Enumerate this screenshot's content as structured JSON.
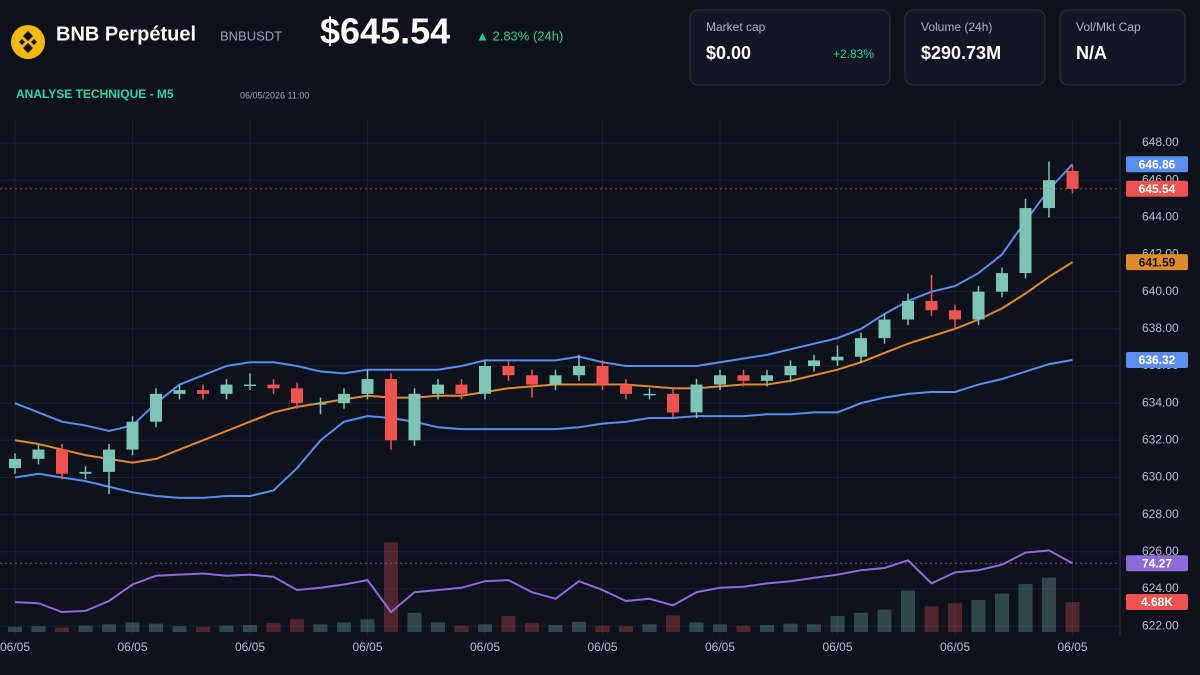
{
  "header": {
    "name": "BNB Perpétuel",
    "symbol": "BNBUSDT",
    "price": "$645.54",
    "change": "▲ 2.83% (24h)",
    "section": "ANALYSE TECHNIQUE - M5",
    "timestamp": "06/05/2026 11:00"
  },
  "cards": [
    {
      "label": "Market cap",
      "value": "$0.00",
      "change": "+2.83%"
    },
    {
      "label": "Volume (24h)",
      "value": "$290.73M"
    },
    {
      "label": "Vol/Mkt Cap",
      "value": "N/A"
    }
  ],
  "chart_data": {
    "type": "candlestick",
    "categories": [
      "06/05",
      null,
      null,
      null,
      null,
      "06/05",
      null,
      null,
      null,
      null,
      "06/05",
      null,
      null,
      null,
      null,
      "06/05",
      null,
      null,
      null,
      null,
      "06/05",
      null,
      null,
      null,
      null,
      "06/05",
      null,
      null,
      null,
      null,
      "06/05",
      null,
      null,
      null,
      null,
      "06/05",
      null,
      null,
      null,
      null,
      "06/05",
      null,
      null,
      null,
      null,
      "06/05"
    ],
    "open": [
      630.5,
      631,
      631.5,
      630.2,
      630.3,
      631.5,
      633,
      634.5,
      634.7,
      634.5,
      635,
      635,
      634.8,
      634,
      634,
      634.5,
      635.3,
      632,
      634.5,
      635,
      634.5,
      636,
      635.5,
      635,
      635.5,
      636,
      635,
      634.5,
      634.5,
      633.5,
      635,
      635.5,
      635.2,
      635.5,
      636,
      636.3,
      636.5,
      637.5,
      638.5,
      639.5,
      639,
      638.5,
      640,
      641,
      644.5,
      646.5
    ],
    "high": [
      631.3,
      631.8,
      631.8,
      630.6,
      631.8,
      633.3,
      634.8,
      635,
      635,
      635.3,
      635.6,
      635.3,
      635.1,
      634.3,
      634.8,
      635.8,
      635.6,
      634.8,
      635.3,
      635.3,
      636.3,
      636.3,
      635.8,
      635.8,
      636.6,
      636.3,
      635.3,
      634.8,
      634.8,
      635.3,
      635.8,
      635.8,
      635.8,
      636.3,
      636.6,
      637.1,
      637.8,
      638.8,
      639.9,
      640.9,
      639.3,
      640.3,
      641.3,
      645,
      647,
      646.8
    ],
    "low": [
      630.2,
      630.7,
      629.9,
      629.9,
      629.1,
      631.2,
      632.7,
      634.2,
      634.2,
      634.2,
      634.7,
      634.5,
      633.7,
      633.4,
      633.7,
      634.2,
      631.5,
      631.7,
      634.2,
      634.2,
      634.2,
      635.2,
      634.3,
      634.7,
      635.2,
      634.7,
      634.2,
      634.2,
      633.2,
      633.2,
      634.7,
      634.9,
      634.9,
      635.2,
      635.7,
      636,
      636.2,
      637.2,
      638.2,
      638.7,
      638,
      638.2,
      639.7,
      640.7,
      644,
      645.3
    ],
    "close": [
      631,
      631.5,
      630.2,
      630.3,
      631.5,
      633,
      634.5,
      634.7,
      634.5,
      635,
      635,
      634.8,
      634,
      634,
      634.5,
      635.3,
      632,
      634.5,
      635,
      634.5,
      636,
      635.5,
      635,
      635.5,
      636,
      635,
      634.5,
      634.5,
      633.5,
      635,
      635.5,
      635.2,
      635.5,
      636,
      636.3,
      636.5,
      637.5,
      638.5,
      639.5,
      639,
      638.5,
      640,
      641,
      644.5,
      646,
      645.54
    ],
    "up_color": "#7cc4b4",
    "down_color": "#ef5350",
    "lines": [
      {
        "color": "#5b8def",
        "values": [
          634,
          633.5,
          633,
          632.8,
          632.5,
          632.8,
          634,
          635,
          635.5,
          636,
          636.2,
          636.2,
          636,
          635.7,
          635.6,
          635.8,
          635.8,
          635.8,
          635.8,
          636,
          636.3,
          636.3,
          636.3,
          636.3,
          636.5,
          636.2,
          636,
          636,
          636,
          636,
          636.2,
          636.4,
          636.6,
          636.9,
          637.2,
          637.5,
          638,
          638.8,
          639.5,
          640,
          640.3,
          641,
          642,
          643.8,
          645.5,
          646.86
        ]
      },
      {
        "color": "#e08a2c",
        "values": [
          632,
          631.8,
          631.5,
          631.2,
          631,
          630.8,
          631,
          631.5,
          632,
          632.5,
          633,
          633.5,
          633.8,
          634,
          634.2,
          634.4,
          634.3,
          634.3,
          634.4,
          634.4,
          634.6,
          634.8,
          634.9,
          635,
          635,
          635,
          635,
          634.9,
          634.8,
          634.8,
          634.9,
          635,
          635,
          635.2,
          635.5,
          635.8,
          636.2,
          636.7,
          637.2,
          637.6,
          638,
          638.5,
          639.1,
          639.9,
          640.8,
          641.59
        ]
      },
      {
        "color": "#5b8def",
        "values": [
          630,
          630.2,
          630,
          629.8,
          629.5,
          629.2,
          629,
          628.9,
          628.9,
          629,
          629,
          629.3,
          630.5,
          632,
          633,
          633.3,
          633.2,
          633,
          632.7,
          632.6,
          632.6,
          632.6,
          632.6,
          632.6,
          632.7,
          632.9,
          633,
          633.2,
          633.2,
          633.3,
          633.3,
          633.3,
          633.4,
          633.4,
          633.5,
          633.5,
          634,
          634.3,
          634.5,
          634.6,
          634.6,
          635,
          635.3,
          635.7,
          636.1,
          636.32
        ]
      }
    ],
    "rsi": {
      "color": "#8e6bd8",
      "axis": "y2",
      "values": [
        39,
        38,
        30,
        31,
        40,
        55,
        63,
        64,
        65,
        63,
        64,
        62,
        50,
        52,
        55,
        59,
        30,
        48,
        50,
        52,
        58,
        59,
        48,
        42,
        58,
        50,
        40,
        42,
        36,
        48,
        52,
        53,
        56,
        58,
        61,
        64,
        68,
        70,
        77,
        56,
        66,
        68,
        73,
        84,
        86,
        74.27
      ]
    },
    "volume": {
      "axis": "y3",
      "values": [
        800,
        900,
        700,
        1000,
        1200,
        1500,
        1300,
        900,
        800,
        1000,
        1100,
        1400,
        2000,
        1200,
        1500,
        2000,
        14000,
        3000,
        1500,
        1000,
        1200,
        2500,
        1400,
        1100,
        1600,
        1000,
        900,
        1200,
        2600,
        1500,
        1200,
        1000,
        1100,
        1300,
        1200,
        2500,
        3000,
        3500,
        6500,
        4000,
        4500,
        5000,
        6000,
        7500,
        8500,
        4680
      ],
      "value_labels": [
        null,
        null,
        null,
        null,
        null,
        null,
        null,
        null,
        null,
        null,
        null,
        null,
        null,
        null,
        null,
        null,
        null,
        null,
        null,
        null,
        null,
        null,
        null,
        null,
        null,
        null,
        null,
        null,
        null,
        null,
        null,
        null,
        null,
        null,
        null,
        null,
        null,
        null,
        null,
        null,
        null,
        null,
        null,
        null,
        null,
        "4.68K"
      ]
    },
    "ylim": [
      621.52,
      649.24
    ],
    "yticks": [
      {
        "value": 622,
        "label": "622.00"
      },
      {
        "value": 624,
        "label": "624.00"
      },
      {
        "value": 626,
        "label": "626.00"
      },
      {
        "value": 628,
        "label": "628.00"
      },
      {
        "value": 630,
        "label": "630.00"
      },
      {
        "value": 632,
        "label": "632.00"
      },
      {
        "value": 634,
        "label": "634.00"
      },
      {
        "value": 636,
        "label": "636.00"
      },
      {
        "value": 638,
        "label": "638.00"
      },
      {
        "value": 640,
        "label": "640.00"
      },
      {
        "value": 642,
        "label": "642.00"
      },
      {
        "value": 644,
        "label": "644.00"
      },
      {
        "value": 646,
        "label": "646.00"
      },
      {
        "value": 648,
        "label": "648.00"
      }
    ],
    "y2lim": [
      0,
      100
    ],
    "y3lim": [
      0,
      80000
    ],
    "grid": true
  }
}
